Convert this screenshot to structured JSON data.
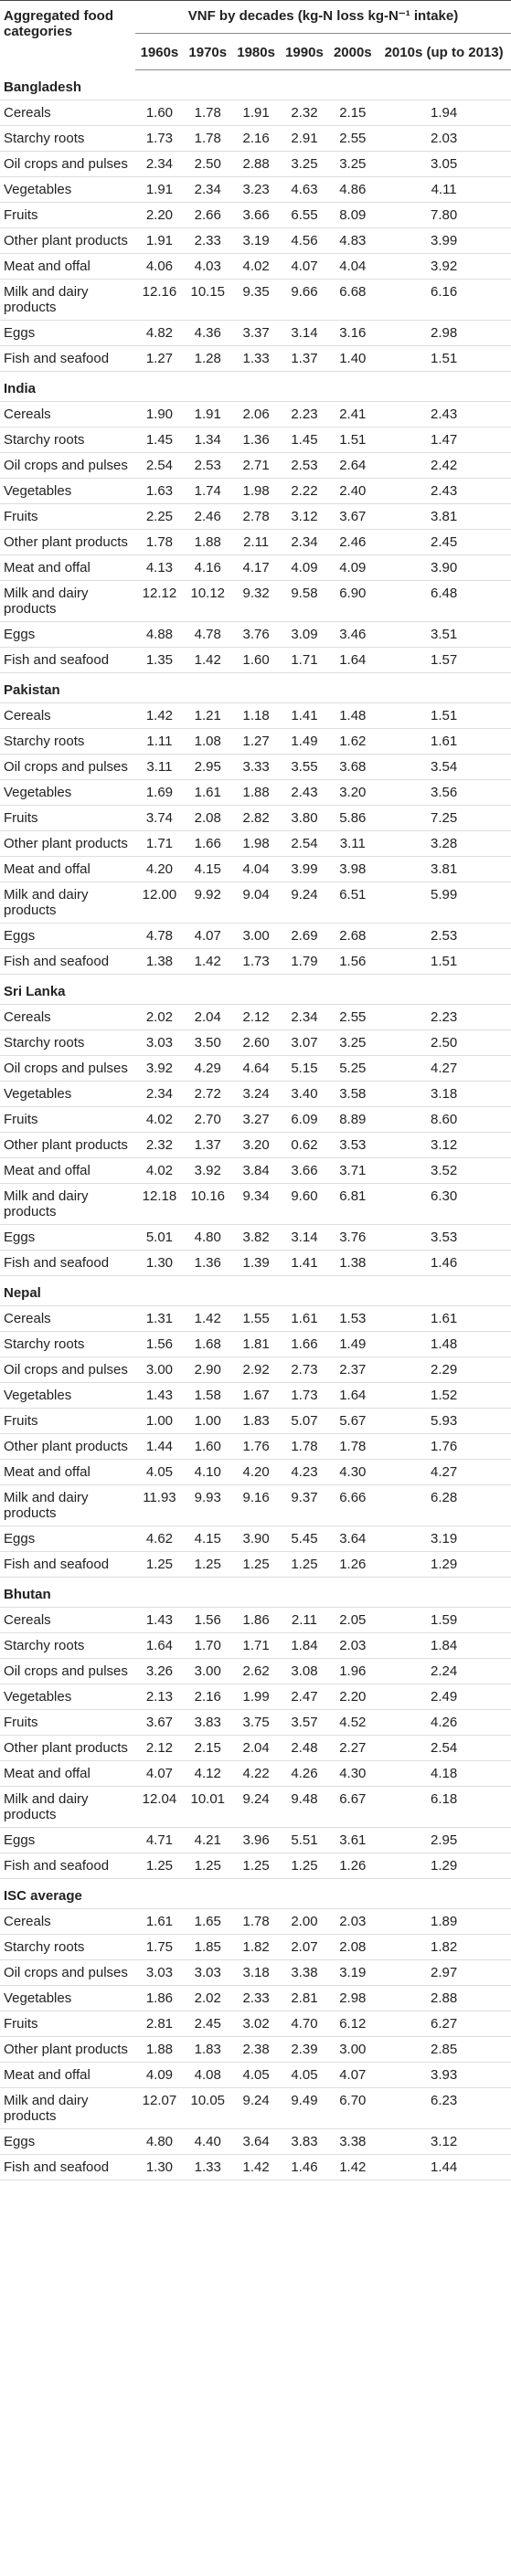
{
  "table": {
    "headers": {
      "category": "Aggregated food categories",
      "group": "VNF by decades (kg-N loss kg-N⁻¹ intake)",
      "decades": [
        "1960s",
        "1970s",
        "1980s",
        "1990s",
        "2000s",
        "2010s (up to 2013)"
      ]
    },
    "groups": [
      {
        "name": "Bangladesh",
        "rows": [
          {
            "label": "Cereals",
            "values": [
              "1.60",
              "1.78",
              "1.91",
              "2.32",
              "2.15",
              "1.94"
            ]
          },
          {
            "label": "Starchy roots",
            "values": [
              "1.73",
              "1.78",
              "2.16",
              "2.91",
              "2.55",
              "2.03"
            ]
          },
          {
            "label": "Oil crops and pulses",
            "values": [
              "2.34",
              "2.50",
              "2.88",
              "3.25",
              "3.25",
              "3.05"
            ]
          },
          {
            "label": "Vegetables",
            "values": [
              "1.91",
              "2.34",
              "3.23",
              "4.63",
              "4.86",
              "4.11"
            ]
          },
          {
            "label": "Fruits",
            "values": [
              "2.20",
              "2.66",
              "3.66",
              "6.55",
              "8.09",
              "7.80"
            ]
          },
          {
            "label": "Other plant products",
            "values": [
              "1.91",
              "2.33",
              "3.19",
              "4.56",
              "4.83",
              "3.99"
            ]
          },
          {
            "label": "Meat and offal",
            "values": [
              "4.06",
              "4.03",
              "4.02",
              "4.07",
              "4.04",
              "3.92"
            ]
          },
          {
            "label": "Milk and dairy products",
            "values": [
              "12.16",
              "10.15",
              "9.35",
              "9.66",
              "6.68",
              "6.16"
            ]
          },
          {
            "label": "Eggs",
            "values": [
              "4.82",
              "4.36",
              "3.37",
              "3.14",
              "3.16",
              "2.98"
            ]
          },
          {
            "label": "Fish and seafood",
            "values": [
              "1.27",
              "1.28",
              "1.33",
              "1.37",
              "1.40",
              "1.51"
            ]
          }
        ]
      },
      {
        "name": "India",
        "rows": [
          {
            "label": "Cereals",
            "values": [
              "1.90",
              "1.91",
              "2.06",
              "2.23",
              "2.41",
              "2.43"
            ]
          },
          {
            "label": "Starchy roots",
            "values": [
              "1.45",
              "1.34",
              "1.36",
              "1.45",
              "1.51",
              "1.47"
            ]
          },
          {
            "label": "Oil crops and pulses",
            "values": [
              "2.54",
              "2.53",
              "2.71",
              "2.53",
              "2.64",
              "2.42"
            ]
          },
          {
            "label": "Vegetables",
            "values": [
              "1.63",
              "1.74",
              "1.98",
              "2.22",
              "2.40",
              "2.43"
            ]
          },
          {
            "label": "Fruits",
            "values": [
              "2.25",
              "2.46",
              "2.78",
              "3.12",
              "3.67",
              "3.81"
            ]
          },
          {
            "label": "Other plant products",
            "values": [
              "1.78",
              "1.88",
              "2.11",
              "2.34",
              "2.46",
              "2.45"
            ]
          },
          {
            "label": "Meat and offal",
            "values": [
              "4.13",
              "4.16",
              "4.17",
              "4.09",
              "4.09",
              "3.90"
            ]
          },
          {
            "label": "Milk and dairy products",
            "values": [
              "12.12",
              "10.12",
              "9.32",
              "9.58",
              "6.90",
              "6.48"
            ]
          },
          {
            "label": "Eggs",
            "values": [
              "4.88",
              "4.78",
              "3.76",
              "3.09",
              "3.46",
              "3.51"
            ]
          },
          {
            "label": "Fish and seafood",
            "values": [
              "1.35",
              "1.42",
              "1.60",
              "1.71",
              "1.64",
              "1.57"
            ]
          }
        ]
      },
      {
        "name": "Pakistan",
        "rows": [
          {
            "label": "Cereals",
            "values": [
              "1.42",
              "1.21",
              "1.18",
              "1.41",
              "1.48",
              "1.51"
            ]
          },
          {
            "label": "Starchy roots",
            "values": [
              "1.11",
              "1.08",
              "1.27",
              "1.49",
              "1.62",
              "1.61"
            ]
          },
          {
            "label": "Oil crops and pulses",
            "values": [
              "3.11",
              "2.95",
              "3.33",
              "3.55",
              "3.68",
              "3.54"
            ]
          },
          {
            "label": "Vegetables",
            "values": [
              "1.69",
              "1.61",
              "1.88",
              "2.43",
              "3.20",
              "3.56"
            ]
          },
          {
            "label": "Fruits",
            "values": [
              "3.74",
              "2.08",
              "2.82",
              "3.80",
              "5.86",
              "7.25"
            ]
          },
          {
            "label": "Other plant products",
            "values": [
              "1.71",
              "1.66",
              "1.98",
              "2.54",
              "3.11",
              "3.28"
            ]
          },
          {
            "label": "Meat and offal",
            "values": [
              "4.20",
              "4.15",
              "4.04",
              "3.99",
              "3.98",
              "3.81"
            ]
          },
          {
            "label": "Milk and dairy products",
            "values": [
              "12.00",
              "9.92",
              "9.04",
              "9.24",
              "6.51",
              "5.99"
            ]
          },
          {
            "label": "Eggs",
            "values": [
              "4.78",
              "4.07",
              "3.00",
              "2.69",
              "2.68",
              "2.53"
            ]
          },
          {
            "label": "Fish and seafood",
            "values": [
              "1.38",
              "1.42",
              "1.73",
              "1.79",
              "1.56",
              "1.51"
            ]
          }
        ]
      },
      {
        "name": "Sri Lanka",
        "rows": [
          {
            "label": "Cereals",
            "values": [
              "2.02",
              "2.04",
              "2.12",
              "2.34",
              "2.55",
              "2.23"
            ]
          },
          {
            "label": "Starchy roots",
            "values": [
              "3.03",
              "3.50",
              "2.60",
              "3.07",
              "3.25",
              "2.50"
            ]
          },
          {
            "label": "Oil crops and pulses",
            "values": [
              "3.92",
              "4.29",
              "4.64",
              "5.15",
              "5.25",
              "4.27"
            ]
          },
          {
            "label": "Vegetables",
            "values": [
              "2.34",
              "2.72",
              "3.24",
              "3.40",
              "3.58",
              "3.18"
            ]
          },
          {
            "label": "Fruits",
            "values": [
              "4.02",
              "2.70",
              "3.27",
              "6.09",
              "8.89",
              "8.60"
            ]
          },
          {
            "label": "Other plant products",
            "values": [
              "2.32",
              "1.37",
              "3.20",
              "0.62",
              "3.53",
              "3.12"
            ]
          },
          {
            "label": "Meat and offal",
            "values": [
              "4.02",
              "3.92",
              "3.84",
              "3.66",
              "3.71",
              "3.52"
            ]
          },
          {
            "label": "Milk and dairy products",
            "values": [
              "12.18",
              "10.16",
              "9.34",
              "9.60",
              "6.81",
              "6.30"
            ]
          },
          {
            "label": "Eggs",
            "values": [
              "5.01",
              "4.80",
              "3.82",
              "3.14",
              "3.76",
              "3.53"
            ]
          },
          {
            "label": "Fish and seafood",
            "values": [
              "1.30",
              "1.36",
              "1.39",
              "1.41",
              "1.38",
              "1.46"
            ]
          }
        ]
      },
      {
        "name": "Nepal",
        "rows": [
          {
            "label": "Cereals",
            "values": [
              "1.31",
              "1.42",
              "1.55",
              "1.61",
              "1.53",
              "1.61"
            ]
          },
          {
            "label": "Starchy roots",
            "values": [
              "1.56",
              "1.68",
              "1.81",
              "1.66",
              "1.49",
              "1.48"
            ]
          },
          {
            "label": "Oil crops and pulses",
            "values": [
              "3.00",
              "2.90",
              "2.92",
              "2.73",
              "2.37",
              "2.29"
            ]
          },
          {
            "label": "Vegetables",
            "values": [
              "1.43",
              "1.58",
              "1.67",
              "1.73",
              "1.64",
              "1.52"
            ]
          },
          {
            "label": "Fruits",
            "values": [
              "1.00",
              "1.00",
              "1.83",
              "5.07",
              "5.67",
              "5.93"
            ]
          },
          {
            "label": "Other plant products",
            "values": [
              "1.44",
              "1.60",
              "1.76",
              "1.78",
              "1.78",
              "1.76"
            ]
          },
          {
            "label": "Meat and offal",
            "values": [
              "4.05",
              "4.10",
              "4.20",
              "4.23",
              "4.30",
              "4.27"
            ]
          },
          {
            "label": "Milk and dairy products",
            "values": [
              "11.93",
              "9.93",
              "9.16",
              "9.37",
              "6.66",
              "6.28"
            ]
          },
          {
            "label": "Eggs",
            "values": [
              "4.62",
              "4.15",
              "3.90",
              "5.45",
              "3.64",
              "3.19"
            ]
          },
          {
            "label": "Fish and seafood",
            "values": [
              "1.25",
              "1.25",
              "1.25",
              "1.25",
              "1.26",
              "1.29"
            ]
          }
        ]
      },
      {
        "name": "Bhutan",
        "rows": [
          {
            "label": "Cereals",
            "values": [
              "1.43",
              "1.56",
              "1.86",
              "2.11",
              "2.05",
              "1.59"
            ]
          },
          {
            "label": "Starchy roots",
            "values": [
              "1.64",
              "1.70",
              "1.71",
              "1.84",
              "2.03",
              "1.84"
            ]
          },
          {
            "label": "Oil crops and pulses",
            "values": [
              "3.26",
              "3.00",
              "2.62",
              "3.08",
              "1.96",
              "2.24"
            ]
          },
          {
            "label": "Vegetables",
            "values": [
              "2.13",
              "2.16",
              "1.99",
              "2.47",
              "2.20",
              "2.49"
            ]
          },
          {
            "label": "Fruits",
            "values": [
              "3.67",
              "3.83",
              "3.75",
              "3.57",
              "4.52",
              "4.26"
            ]
          },
          {
            "label": "Other plant products",
            "values": [
              "2.12",
              "2.15",
              "2.04",
              "2.48",
              "2.27",
              "2.54"
            ]
          },
          {
            "label": "Meat and offal",
            "values": [
              "4.07",
              "4.12",
              "4.22",
              "4.26",
              "4.30",
              "4.18"
            ]
          },
          {
            "label": "Milk and dairy products",
            "values": [
              "12.04",
              "10.01",
              "9.24",
              "9.48",
              "6.67",
              "6.18"
            ]
          },
          {
            "label": "Eggs",
            "values": [
              "4.71",
              "4.21",
              "3.96",
              "5.51",
              "3.61",
              "2.95"
            ]
          },
          {
            "label": "Fish and seafood",
            "values": [
              "1.25",
              "1.25",
              "1.25",
              "1.25",
              "1.26",
              "1.29"
            ]
          }
        ]
      },
      {
        "name": "ISC average",
        "rows": [
          {
            "label": "Cereals",
            "values": [
              "1.61",
              "1.65",
              "1.78",
              "2.00",
              "2.03",
              "1.89"
            ]
          },
          {
            "label": "Starchy roots",
            "values": [
              "1.75",
              "1.85",
              "1.82",
              "2.07",
              "2.08",
              "1.82"
            ]
          },
          {
            "label": "Oil crops and pulses",
            "values": [
              "3.03",
              "3.03",
              "3.18",
              "3.38",
              "3.19",
              "2.97"
            ]
          },
          {
            "label": "Vegetables",
            "values": [
              "1.86",
              "2.02",
              "2.33",
              "2.81",
              "2.98",
              "2.88"
            ]
          },
          {
            "label": "Fruits",
            "values": [
              "2.81",
              "2.45",
              "3.02",
              "4.70",
              "6.12",
              "6.27"
            ]
          },
          {
            "label": "Other plant products",
            "values": [
              "1.88",
              "1.83",
              "2.38",
              "2.39",
              "3.00",
              "2.85"
            ]
          },
          {
            "label": "Meat and offal",
            "values": [
              "4.09",
              "4.08",
              "4.05",
              "4.05",
              "4.07",
              "3.93"
            ]
          },
          {
            "label": "Milk and dairy products",
            "values": [
              "12.07",
              "10.05",
              "9.24",
              "9.49",
              "6.70",
              "6.23"
            ]
          },
          {
            "label": "Eggs",
            "values": [
              "4.80",
              "4.40",
              "3.64",
              "3.83",
              "3.38",
              "3.12"
            ]
          },
          {
            "label": "Fish and seafood",
            "values": [
              "1.30",
              "1.33",
              "1.42",
              "1.46",
              "1.42",
              "1.44"
            ]
          }
        ]
      }
    ]
  }
}
